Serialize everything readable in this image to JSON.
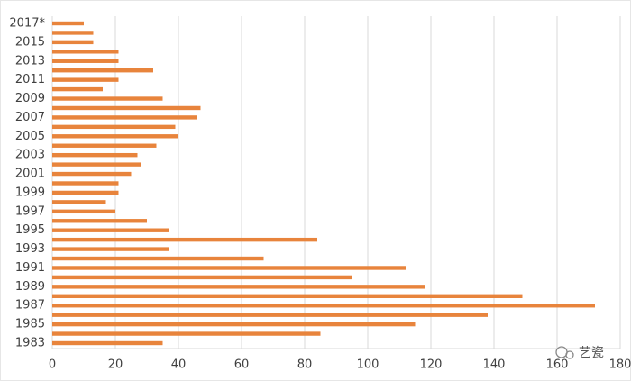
{
  "chart_data": {
    "type": "bar",
    "orientation": "horizontal",
    "categories": [
      "1983",
      null,
      "1985",
      null,
      "1987",
      null,
      "1989",
      null,
      "1991",
      null,
      "1993",
      null,
      "1995",
      null,
      "1997",
      null,
      "1999",
      null,
      "2001",
      null,
      "2003",
      null,
      "2005",
      null,
      "2007",
      null,
      "2009",
      null,
      "2011",
      null,
      "2013",
      null,
      "2015",
      null,
      "2017*"
    ],
    "values": [
      35,
      85,
      115,
      138,
      172,
      149,
      118,
      95,
      112,
      67,
      37,
      84,
      37,
      30,
      20,
      17,
      21,
      21,
      25,
      28,
      27,
      33,
      40,
      39,
      46,
      47,
      35,
      16,
      21,
      32,
      21,
      21,
      13,
      13,
      10
    ],
    "color": "#e8843c",
    "xlim": [
      0,
      180
    ],
    "xticks": [
      0,
      20,
      40,
      60,
      80,
      100,
      120,
      140,
      160,
      180
    ],
    "grid": true,
    "watermark": "艺瓷"
  }
}
